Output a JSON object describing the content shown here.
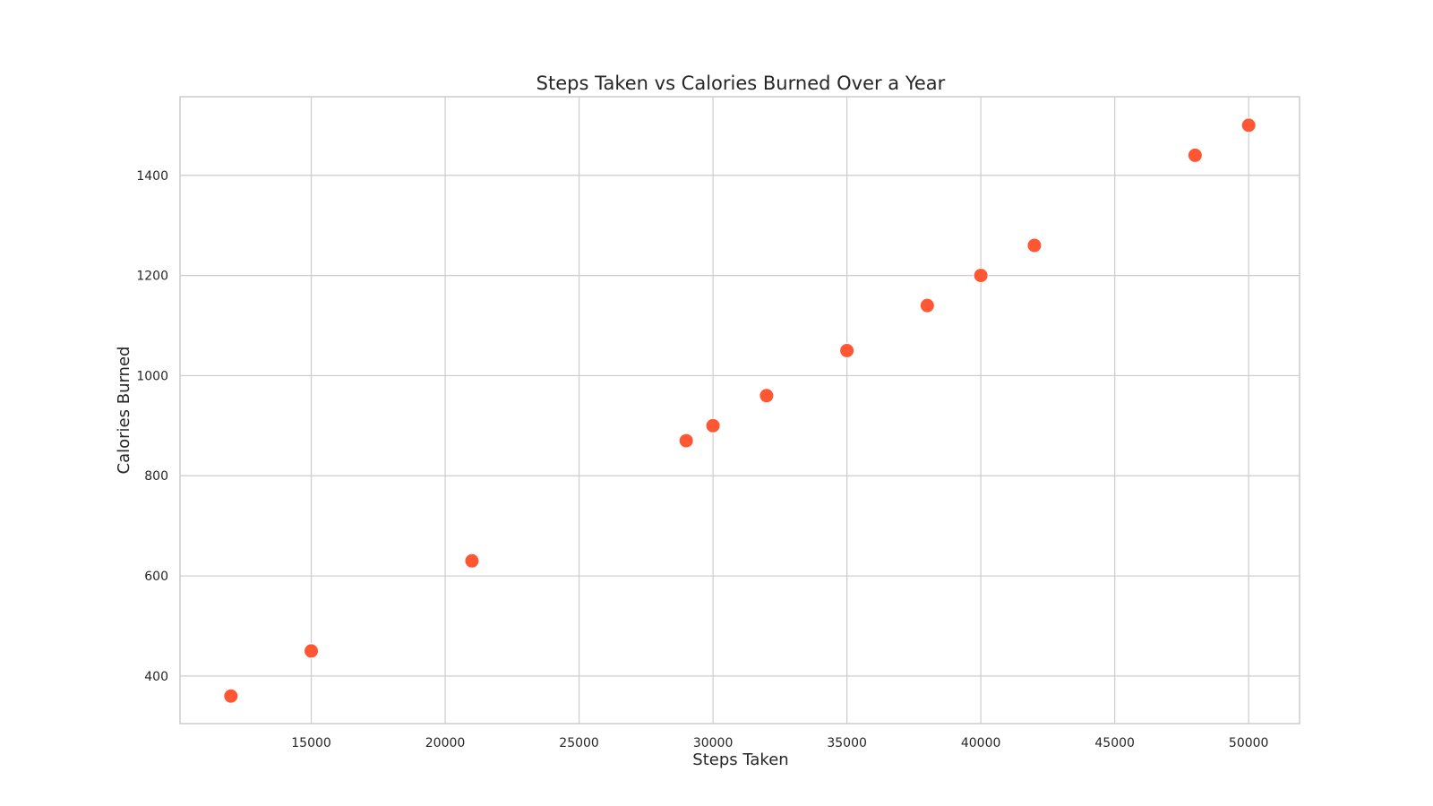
{
  "chart_data": {
    "type": "scatter",
    "title": "Steps Taken vs Calories Burned Over a Year",
    "xlabel": "Steps Taken",
    "ylabel": "Calories Burned",
    "xlim": [
      10100,
      51900
    ],
    "ylim": [
      305,
      1557
    ],
    "xticks": [
      15000,
      20000,
      25000,
      30000,
      35000,
      40000,
      45000,
      50000
    ],
    "yticks": [
      400,
      600,
      800,
      1000,
      1200,
      1400
    ],
    "grid": true,
    "legend": "none",
    "marker_color": "#ff5733",
    "points": [
      {
        "x": 12000,
        "y": 360
      },
      {
        "x": 15000,
        "y": 450
      },
      {
        "x": 21000,
        "y": 630
      },
      {
        "x": 29000,
        "y": 870
      },
      {
        "x": 30000,
        "y": 900
      },
      {
        "x": 32000,
        "y": 960
      },
      {
        "x": 35000,
        "y": 1050
      },
      {
        "x": 38000,
        "y": 1140
      },
      {
        "x": 40000,
        "y": 1200
      },
      {
        "x": 42000,
        "y": 1260
      },
      {
        "x": 48000,
        "y": 1440
      },
      {
        "x": 50000,
        "y": 1500
      }
    ]
  }
}
